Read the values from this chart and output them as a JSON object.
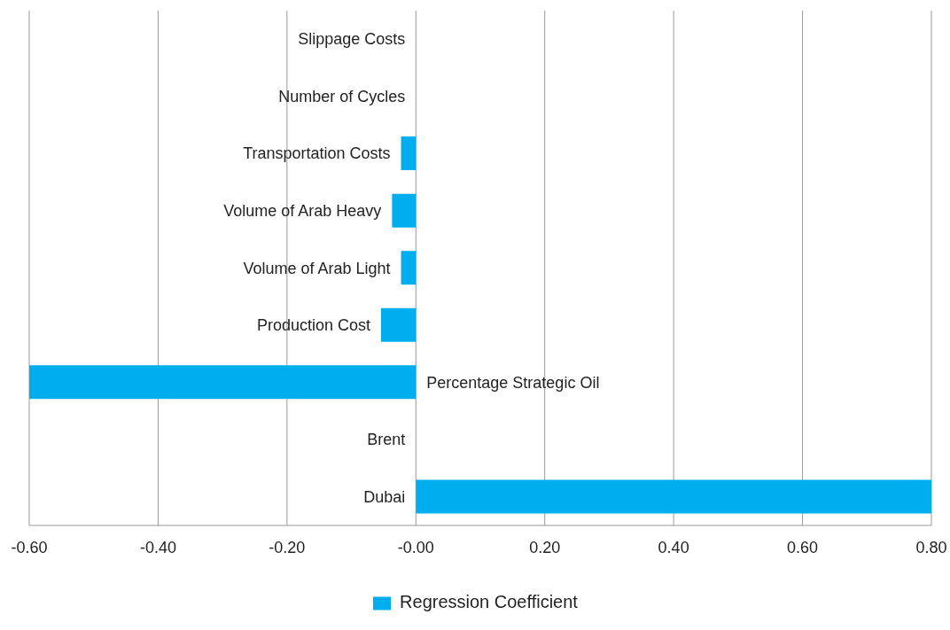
{
  "chart_data": {
    "type": "bar",
    "orientation": "horizontal",
    "categories": [
      "Slippage Costs",
      "Number of Cycles",
      "Transportation Costs",
      "Volume of Arab Heavy",
      "Volume of Arab Light",
      "Production Cost",
      "Percentage Strategic Oil",
      "Brent",
      "Dubai"
    ],
    "series": [
      {
        "name": "Regression Coefficient",
        "color": "#00aeef",
        "values": [
          0,
          0,
          -0.023,
          -0.037,
          -0.023,
          -0.054,
          -0.6,
          0,
          0.8
        ]
      }
    ],
    "xlim": [
      -0.6,
      0.8
    ],
    "xticks": [
      {
        "value": -0.6,
        "label": "-0.60"
      },
      {
        "value": -0.4,
        "label": "-0.40"
      },
      {
        "value": -0.2,
        "label": "-0.20"
      },
      {
        "value": 0,
        "label": "-0.00"
      },
      {
        "value": 0.2,
        "label": "0.20"
      },
      {
        "value": 0.4,
        "label": "0.40"
      },
      {
        "value": 0.6,
        "label": "0.60"
      },
      {
        "value": 0.8,
        "label": "0.80"
      }
    ],
    "grid": "x",
    "legend": "bottom"
  }
}
